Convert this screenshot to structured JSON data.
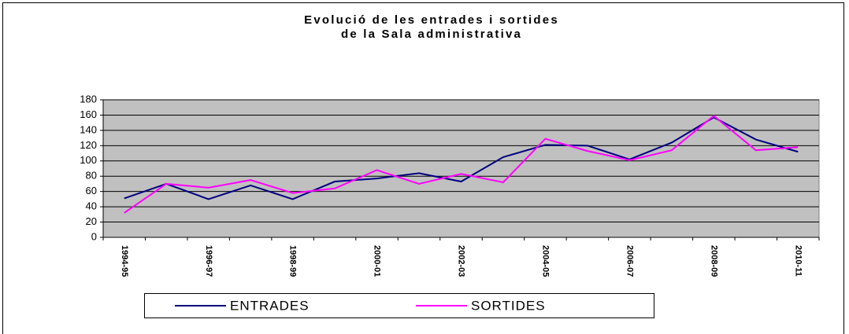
{
  "chart_data": {
    "type": "line",
    "title": [
      "Evolució de les entrades i sortides",
      "de la Sala administrativa"
    ],
    "categories": [
      "1994-95",
      null,
      "1996-97",
      null,
      "1998-99",
      null,
      "2000-01",
      null,
      "2002-03",
      null,
      "2004-05",
      null,
      "2006-07",
      null,
      "2008-09",
      null,
      "2010-11"
    ],
    "series": [
      {
        "name": "ENTRADES",
        "color": "#000080",
        "values": [
          51,
          70,
          50,
          68,
          50,
          73,
          77,
          84,
          73,
          105,
          121,
          120,
          102,
          124,
          157,
          128,
          112
        ]
      },
      {
        "name": "SORTIDES",
        "color": "#ff00ff",
        "values": [
          32,
          70,
          65,
          75,
          58,
          64,
          88,
          70,
          83,
          72,
          129,
          113,
          101,
          114,
          159,
          114,
          118
        ]
      }
    ],
    "ylim": [
      0,
      180
    ],
    "yticks": [
      0,
      20,
      40,
      60,
      80,
      100,
      120,
      140,
      160,
      180
    ],
    "grid": true,
    "legend": "bottom"
  }
}
